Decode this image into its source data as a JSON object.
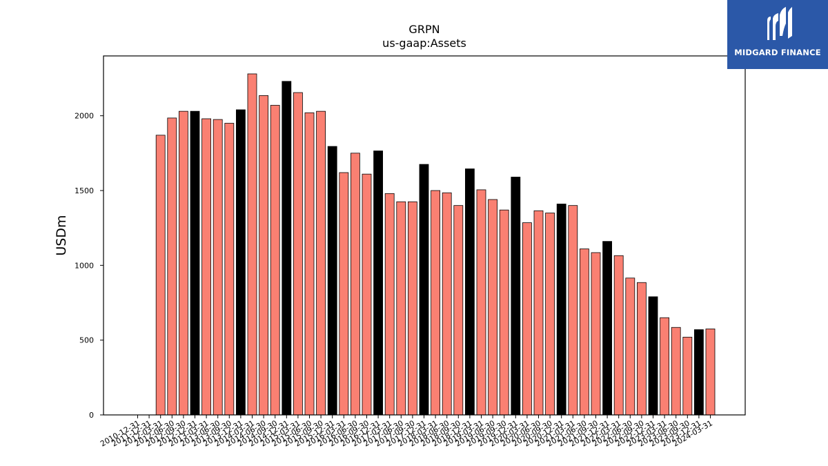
{
  "chart_data": {
    "type": "bar",
    "title": "GRPN",
    "subtitle": "us-gaap:Assets",
    "xlabel": "",
    "ylabel": "USDm",
    "ylim": [
      0,
      2400
    ],
    "yticks": [
      0,
      500,
      1000,
      1500,
      2000
    ],
    "grid": false,
    "legend": "none",
    "colors": {
      "quarter": "#fa8072",
      "annual": "#000000",
      "edge": "#000000"
    },
    "categories": [
      "2010-12-31",
      "2011-12-31",
      "2012-03-31",
      "2012-06-30",
      "2012-09-30",
      "2012-12-31",
      "2013-03-31",
      "2013-06-30",
      "2013-09-30",
      "2013-12-31",
      "2014-03-31",
      "2014-06-30",
      "2014-09-30",
      "2014-12-31",
      "2015-03-31",
      "2015-06-30",
      "2015-09-30",
      "2015-12-31",
      "2016-03-31",
      "2016-06-30",
      "2016-09-30",
      "2016-12-31",
      "2017-03-31",
      "2017-06-30",
      "2017-09-30",
      "2017-12-31",
      "2018-03-31",
      "2018-06-30",
      "2018-09-30",
      "2018-12-31",
      "2019-03-31",
      "2019-06-30",
      "2019-09-30",
      "2019-12-31",
      "2020-03-31",
      "2020-06-30",
      "2020-09-30",
      "2020-12-31",
      "2021-03-31",
      "2021-06-30",
      "2021-09-30",
      "2021-12-31",
      "2022-03-31",
      "2022-06-30",
      "2022-09-30",
      "2022-12-31",
      "2023-03-31",
      "2023-06-30",
      "2023-09-30",
      "2023-12-31",
      "2024-03-31"
    ],
    "values": [
      0,
      0,
      1870,
      1985,
      2030,
      2030,
      1980,
      1975,
      1950,
      2040,
      2280,
      2135,
      2070,
      2230,
      2155,
      2020,
      2030,
      1795,
      1620,
      1750,
      1610,
      1765,
      1480,
      1425,
      1425,
      1675,
      1500,
      1485,
      1400,
      1645,
      1505,
      1440,
      1370,
      1590,
      1285,
      1365,
      1350,
      1410,
      1400,
      1110,
      1085,
      1160,
      1065,
      915,
      885,
      790,
      650,
      585,
      520,
      570,
      575
    ],
    "annual": [
      1,
      1,
      0,
      0,
      0,
      1,
      0,
      0,
      0,
      1,
      0,
      0,
      0,
      1,
      0,
      0,
      0,
      1,
      0,
      0,
      0,
      1,
      0,
      0,
      0,
      1,
      0,
      0,
      0,
      1,
      0,
      0,
      0,
      1,
      0,
      0,
      0,
      1,
      0,
      0,
      0,
      1,
      0,
      0,
      0,
      1,
      0,
      0,
      0,
      1,
      0
    ]
  },
  "logo": {
    "text": "MIDGARD FINANCE"
  }
}
